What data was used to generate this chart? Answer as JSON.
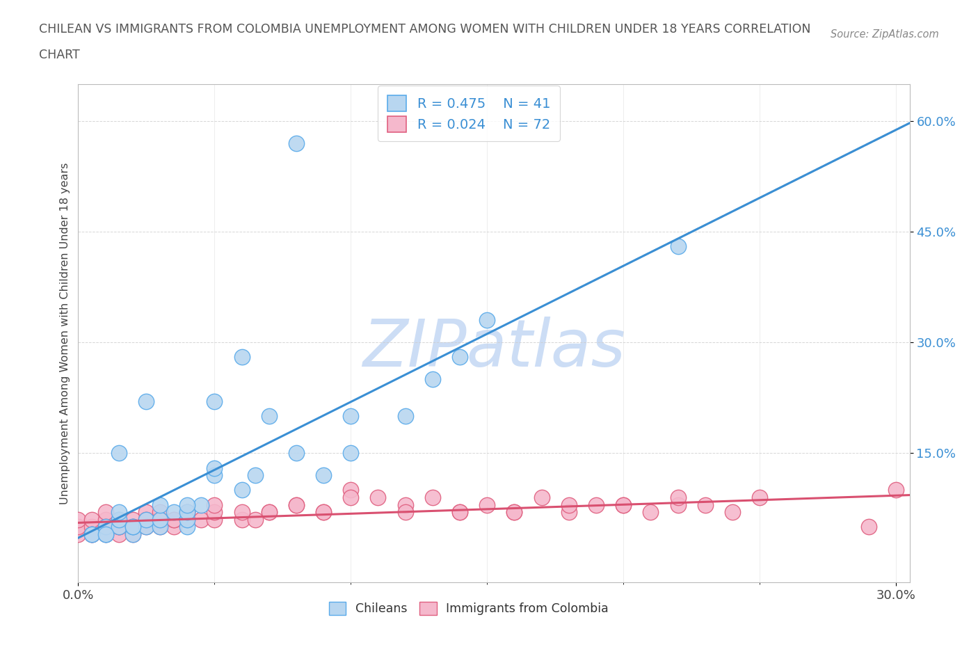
{
  "title_line1": "CHILEAN VS IMMIGRANTS FROM COLOMBIA UNEMPLOYMENT AMONG WOMEN WITH CHILDREN UNDER 18 YEARS CORRELATION",
  "title_line2": "CHART",
  "source": "Source: ZipAtlas.com",
  "xlim": [
    0.0,
    0.305
  ],
  "ylim": [
    -0.025,
    0.65
  ],
  "yticks": [
    0.15,
    0.3,
    0.45,
    0.6
  ],
  "ytick_labels": [
    "15.0%",
    "30.0%",
    "45.0%",
    "60.0%"
  ],
  "xticks": [
    0.0,
    0.3
  ],
  "xtick_labels": [
    "0.0%",
    "30.0%"
  ],
  "legend_r1": "R = 0.475",
  "legend_n1": "N = 41",
  "legend_r2": "R = 0.024",
  "legend_n2": "N = 72",
  "color_chilean_fill": "#b8d6f0",
  "color_chilean_edge": "#5aabea",
  "color_immigrant_fill": "#f5b8cc",
  "color_immigrant_edge": "#e06080",
  "color_line_blue": "#3a8fd4",
  "color_line_pink": "#d95070",
  "color_line_dash": "#aaaaaa",
  "watermark_text": "ZIPatlas",
  "watermark_color": "#ccddf5",
  "ch_x": [
    0.005,
    0.01,
    0.01,
    0.015,
    0.015,
    0.015,
    0.02,
    0.02,
    0.025,
    0.025,
    0.03,
    0.03,
    0.035,
    0.04,
    0.04,
    0.04,
    0.045,
    0.05,
    0.05,
    0.06,
    0.065,
    0.07,
    0.08,
    0.09,
    0.1,
    0.1,
    0.12,
    0.13,
    0.14,
    0.15,
    0.005,
    0.01,
    0.015,
    0.02,
    0.025,
    0.03,
    0.04,
    0.05,
    0.06,
    0.08,
    0.22
  ],
  "ch_y": [
    0.04,
    0.04,
    0.05,
    0.05,
    0.06,
    0.07,
    0.04,
    0.05,
    0.05,
    0.06,
    0.05,
    0.06,
    0.07,
    0.05,
    0.06,
    0.07,
    0.08,
    0.12,
    0.13,
    0.1,
    0.12,
    0.2,
    0.57,
    0.12,
    0.15,
    0.2,
    0.2,
    0.25,
    0.28,
    0.33,
    0.04,
    0.04,
    0.15,
    0.05,
    0.22,
    0.08,
    0.08,
    0.22,
    0.28,
    0.15,
    0.43
  ],
  "im_x": [
    0.0,
    0.0,
    0.0,
    0.005,
    0.005,
    0.005,
    0.01,
    0.01,
    0.01,
    0.01,
    0.015,
    0.015,
    0.015,
    0.02,
    0.02,
    0.02,
    0.025,
    0.025,
    0.025,
    0.03,
    0.03,
    0.03,
    0.035,
    0.035,
    0.04,
    0.04,
    0.045,
    0.05,
    0.05,
    0.06,
    0.065,
    0.07,
    0.08,
    0.09,
    0.1,
    0.11,
    0.12,
    0.13,
    0.14,
    0.15,
    0.16,
    0.17,
    0.18,
    0.19,
    0.2,
    0.21,
    0.22,
    0.23,
    0.24,
    0.25,
    0.005,
    0.01,
    0.015,
    0.02,
    0.025,
    0.03,
    0.035,
    0.04,
    0.05,
    0.06,
    0.07,
    0.08,
    0.09,
    0.1,
    0.12,
    0.14,
    0.16,
    0.18,
    0.2,
    0.22,
    0.3,
    0.29
  ],
  "im_y": [
    0.04,
    0.05,
    0.06,
    0.04,
    0.05,
    0.06,
    0.04,
    0.05,
    0.06,
    0.07,
    0.04,
    0.05,
    0.06,
    0.04,
    0.05,
    0.06,
    0.05,
    0.06,
    0.07,
    0.05,
    0.06,
    0.07,
    0.05,
    0.06,
    0.06,
    0.07,
    0.06,
    0.06,
    0.07,
    0.06,
    0.06,
    0.07,
    0.08,
    0.07,
    0.1,
    0.09,
    0.08,
    0.09,
    0.07,
    0.08,
    0.07,
    0.09,
    0.07,
    0.08,
    0.08,
    0.07,
    0.08,
    0.08,
    0.07,
    0.09,
    0.04,
    0.05,
    0.05,
    0.05,
    0.06,
    0.06,
    0.06,
    0.07,
    0.08,
    0.07,
    0.07,
    0.08,
    0.07,
    0.09,
    0.07,
    0.07,
    0.07,
    0.08,
    0.08,
    0.09,
    0.1,
    0.05
  ]
}
